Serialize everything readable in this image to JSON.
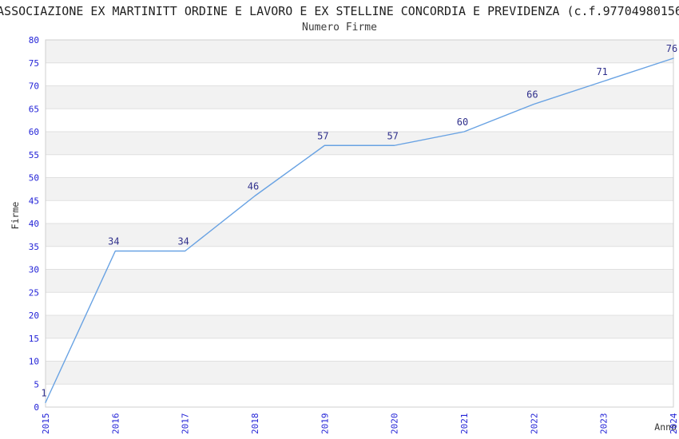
{
  "title": "ASSOCIAZIONE EX MARTINITT ORDINE E LAVORO E EX STELLINE CONCORDIA E PREVIDENZA (c.f.97704980156",
  "chart_data": {
    "type": "line",
    "title": "Numero Firme",
    "xlabel": "Anno",
    "ylabel": "Firme",
    "categories": [
      "2015",
      "2016",
      "2017",
      "2018",
      "2019",
      "2020",
      "2021",
      "2022",
      "2023",
      "2024"
    ],
    "values": [
      1,
      34,
      34,
      46,
      57,
      57,
      60,
      66,
      71,
      76
    ],
    "ylim": [
      0,
      80
    ],
    "ytick_step": 5,
    "legend": "none",
    "grid": "horizontal gridlines with alternating shaded bands",
    "colors": {
      "line": "#68a2e3",
      "data_label": "#30308c",
      "tick_label": "#2323d7",
      "band": "#f2f2f2",
      "gridline": "#e0e0e0",
      "border": "#cfcfcf",
      "title": "#1f1f1f",
      "subtitle": "#3c3c3c",
      "axis_title": "#333333",
      "background": "#ffffff"
    }
  }
}
